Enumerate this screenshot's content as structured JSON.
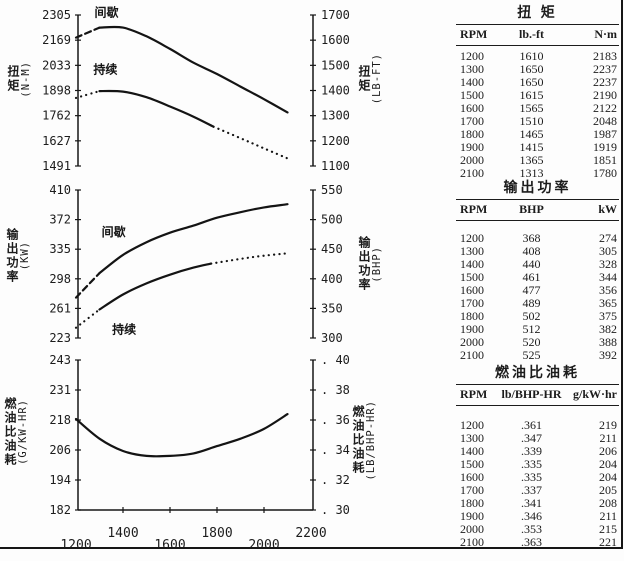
{
  "page": {
    "ink_color": "#1c1c1c",
    "background": "#fdfdfd"
  },
  "x_axis": {
    "xlim": [
      1200,
      2200
    ],
    "ticks": [
      "1200",
      "1400",
      "1600",
      "1800",
      "2000",
      "2200"
    ]
  },
  "chart_data": [
    {
      "id": "torque",
      "type": "line",
      "left_axis": {
        "label": "扭矩",
        "unit": "(N-M)",
        "ticks": [
          "2305",
          "2169",
          "2033",
          "1898",
          "1762",
          "1627",
          "1491"
        ]
      },
      "right_axis": {
        "label": "扭矩",
        "unit": "(LB-FT)",
        "ticks": [
          "1700",
          "1600",
          "1500",
          "1400",
          "1300",
          "1200",
          "1100"
        ]
      },
      "ylim": [
        1491,
        2305
      ],
      "series": [
        {
          "name": "intermittent",
          "annotation": "间歇",
          "segments": [
            {
              "style": "dashed",
              "points": [
                [
                  1200,
                  2183
                ],
                [
                  1300,
                  2237
                ]
              ]
            },
            {
              "style": "solid",
              "points": [
                [
                  1300,
                  2237
                ],
                [
                  1400,
                  2237
                ],
                [
                  1500,
                  2190
                ],
                [
                  1600,
                  2122
                ],
                [
                  1700,
                  2048
                ],
                [
                  1800,
                  1987
                ],
                [
                  1900,
                  1919
                ],
                [
                  2000,
                  1851
                ],
                [
                  2100,
                  1780
                ]
              ]
            }
          ]
        },
        {
          "name": "continuous",
          "annotation": "持续",
          "segments": [
            {
              "style": "dotted",
              "points": [
                [
                  1200,
                  1858
                ],
                [
                  1300,
                  1895
                ]
              ]
            },
            {
              "style": "solid",
              "points": [
                [
                  1300,
                  1895
                ],
                [
                  1400,
                  1892
                ],
                [
                  1500,
                  1862
                ],
                [
                  1600,
                  1812
                ],
                [
                  1700,
                  1757
                ],
                [
                  1785,
                  1703
                ]
              ]
            },
            {
              "style": "dotted",
              "points": [
                [
                  1785,
                  1703
                ],
                [
                  1900,
                  1641
                ],
                [
                  2000,
                  1586
                ],
                [
                  2100,
                  1532
                ]
              ]
            }
          ]
        }
      ],
      "annotations": [
        {
          "text": "间歇",
          "rpm": 1330,
          "value": 2318
        },
        {
          "text": "持续",
          "rpm": 1325,
          "value": 2012
        }
      ]
    },
    {
      "id": "power",
      "type": "line",
      "left_axis": {
        "label": "输出功率",
        "unit": "(KW)",
        "ticks": [
          "410",
          "372",
          "335",
          "298",
          "261",
          "223"
        ]
      },
      "right_axis": {
        "label": "输出功率",
        "unit": "(BHP)",
        "ticks": [
          "550",
          "500",
          "450",
          "400",
          "350",
          "300"
        ]
      },
      "ylim": [
        223,
        410
      ],
      "series": [
        {
          "name": "intermittent",
          "annotation": "间歇",
          "segments": [
            {
              "style": "dashed",
              "points": [
                [
                  1200,
                  274
                ],
                [
                  1300,
                  305
                ]
              ]
            },
            {
              "style": "solid",
              "points": [
                [
                  1300,
                  305
                ],
                [
                  1400,
                  328
                ],
                [
                  1500,
                  344
                ],
                [
                  1600,
                  356
                ],
                [
                  1700,
                  365
                ],
                [
                  1800,
                  375
                ],
                [
                  1900,
                  382
                ],
                [
                  2000,
                  388
                ],
                [
                  2100,
                  392
                ]
              ]
            }
          ]
        },
        {
          "name": "continuous",
          "annotation": "持续",
          "segments": [
            {
              "style": "dotted",
              "points": [
                [
                  1200,
                  236
                ],
                [
                  1300,
                  259
                ]
              ]
            },
            {
              "style": "solid",
              "points": [
                [
                  1300,
                  259
                ],
                [
                  1400,
                  278
                ],
                [
                  1500,
                  292
                ],
                [
                  1600,
                  303
                ],
                [
                  1700,
                  312
                ],
                [
                  1775,
                  317
                ]
              ]
            },
            {
              "style": "dotted",
              "points": [
                [
                  1775,
                  317
                ],
                [
                  1900,
                  323
                ],
                [
                  2000,
                  327
                ],
                [
                  2100,
                  330
                ]
              ]
            }
          ]
        }
      ],
      "annotations": [
        {
          "text": "间歇",
          "rpm": 1360,
          "value": 357
        },
        {
          "text": "持续",
          "rpm": 1405,
          "value": 234
        }
      ]
    },
    {
      "id": "fuel",
      "type": "line",
      "left_axis": {
        "label": "燃油比油耗",
        "unit": "(G/KW-HR)",
        "ticks": [
          "243",
          "231",
          "218",
          "206",
          "194",
          "182"
        ]
      },
      "right_axis": {
        "label": "燃油比油耗",
        "unit": "(LB/BHP-HR)",
        "ticks": [
          ". 40",
          ". 38",
          ". 36",
          ". 34",
          ". 32",
          ". 30"
        ]
      },
      "ylim": [
        182,
        243
      ],
      "x_axis_visible": true,
      "series": [
        {
          "name": "fuel-consumption",
          "annotation": "",
          "segments": [
            {
              "style": "solid",
              "points": [
                [
                  1200,
                  219
                ],
                [
                  1300,
                  211
                ],
                [
                  1400,
                  206
                ],
                [
                  1500,
                  204
                ],
                [
                  1600,
                  204
                ],
                [
                  1700,
                  205
                ],
                [
                  1800,
                  208
                ],
                [
                  1900,
                  211
                ],
                [
                  2000,
                  215
                ],
                [
                  2100,
                  221
                ]
              ]
            }
          ]
        }
      ],
      "annotations": []
    }
  ],
  "tables": [
    {
      "id": "torque",
      "title": "扭 矩",
      "columns": [
        "RPM",
        "lb.-ft",
        "N·m"
      ],
      "rows": [
        [
          "1200",
          "1610",
          "2183"
        ],
        [
          "1300",
          "1650",
          "2237"
        ],
        [
          "1400",
          "1650",
          "2237"
        ],
        [
          "1500",
          "1615",
          "2190"
        ],
        [
          "1600",
          "1565",
          "2122"
        ],
        [
          "1700",
          "1510",
          "2048"
        ],
        [
          "1800",
          "1465",
          "1987"
        ],
        [
          "1900",
          "1415",
          "1919"
        ],
        [
          "2000",
          "1365",
          "1851"
        ],
        [
          "2100",
          "1313",
          "1780"
        ]
      ]
    },
    {
      "id": "power",
      "title": "输出功率",
      "columns": [
        "RPM",
        "BHP",
        "kW"
      ],
      "rows": [
        [
          "1200",
          "368",
          "274"
        ],
        [
          "1300",
          "408",
          "305"
        ],
        [
          "1400",
          "440",
          "328"
        ],
        [
          "1500",
          "461",
          "344"
        ],
        [
          "1600",
          "477",
          "356"
        ],
        [
          "1700",
          "489",
          "365"
        ],
        [
          "1800",
          "502",
          "375"
        ],
        [
          "1900",
          "512",
          "382"
        ],
        [
          "2000",
          "520",
          "388"
        ],
        [
          "2100",
          "525",
          "392"
        ]
      ]
    },
    {
      "id": "fuel",
      "title": "燃油比油耗",
      "columns": [
        "RPM",
        "lb/BHP-HR",
        "g/kW·hr"
      ],
      "rows": [
        [
          "1200",
          ".361",
          "219"
        ],
        [
          "1300",
          ".347",
          "211"
        ],
        [
          "1400",
          ".339",
          "206"
        ],
        [
          "1500",
          ".335",
          "204"
        ],
        [
          "1600",
          ".335",
          "204"
        ],
        [
          "1700",
          ".337",
          "205"
        ],
        [
          "1800",
          ".341",
          "208"
        ],
        [
          "1900",
          ".346",
          "211"
        ],
        [
          "2000",
          ".353",
          "215"
        ],
        [
          "2100",
          ".363",
          "221"
        ]
      ]
    }
  ]
}
